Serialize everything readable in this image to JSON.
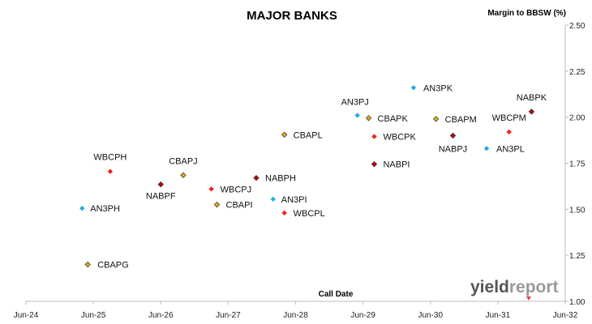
{
  "chart_data": {
    "type": "scatter",
    "title": "MAJOR BANKS",
    "ylabel": "Margin to BBSW (%)",
    "xlabel": "Call Date",
    "ylim": [
      1.0,
      2.5
    ],
    "yticks": [
      "1.00",
      "1.25",
      "1.50",
      "1.75",
      "2.00",
      "2.25",
      "2.50"
    ],
    "xlim": [
      "Jun-24",
      "Jun-32"
    ],
    "xticks": [
      "Jun-24",
      "Jun-25",
      "Jun-26",
      "Jun-27",
      "Jun-28",
      "Jun-29",
      "Jun-30",
      "Jun-31",
      "Jun-32"
    ],
    "grid": false,
    "legend": "none",
    "series": [
      {
        "color": "#29abe2",
        "marker": "diamond",
        "points": [
          {
            "label": "AN3PH",
            "x": "2025-04",
            "y": 1.505
          },
          {
            "label": "AN3PI",
            "x": "2028-02",
            "y": 1.555
          },
          {
            "label": "AN3PJ",
            "x": "2029-05",
            "y": 2.01
          },
          {
            "label": "AN3PK",
            "x": "2030-03",
            "y": 2.16
          },
          {
            "label": "AN3PL",
            "x": "2031-04",
            "y": 1.83
          }
        ]
      },
      {
        "color": "#f5221b",
        "marker": "diamond",
        "points": [
          {
            "label": "WBCPH",
            "x": "2025-09",
            "y": 1.705
          },
          {
            "label": "WBCPJ",
            "x": "2027-03",
            "y": 1.61
          },
          {
            "label": "WBCPL",
            "x": "2028-04",
            "y": 1.48
          },
          {
            "label": "WBCPK",
            "x": "2029-08",
            "y": 1.895
          },
          {
            "label": "WBCPM",
            "x": "2031-08",
            "y": 1.92
          }
        ]
      },
      {
        "color": "#c00000",
        "marker": "diamond",
        "points": [
          {
            "label": "NABPF",
            "x": "2026-06",
            "y": 1.635
          },
          {
            "label": "NABPH",
            "x": "2027-11",
            "y": 1.67
          },
          {
            "label": "NABPI",
            "x": "2029-08",
            "y": 1.745
          },
          {
            "label": "NABPJ",
            "x": "2030-10",
            "y": 1.9
          },
          {
            "label": "NABPK",
            "x": "2031-12",
            "y": 2.03
          }
        ]
      },
      {
        "color": "#e6a817",
        "marker": "diamond",
        "points": [
          {
            "label": "CBAPG",
            "x": "2025-05",
            "y": 1.2
          },
          {
            "label": "CBAPJ",
            "x": "2026-10",
            "y": 1.685
          },
          {
            "label": "CBAPI",
            "x": "2027-04",
            "y": 1.525
          },
          {
            "label": "CBAPL",
            "x": "2028-04",
            "y": 1.905
          },
          {
            "label": "CBAPK",
            "x": "2029-07",
            "y": 1.995
          },
          {
            "label": "CBAPM",
            "x": "2030-07",
            "y": 1.99
          }
        ]
      }
    ]
  },
  "watermark": {
    "brand_a": "yield",
    "brand_b": "report"
  }
}
